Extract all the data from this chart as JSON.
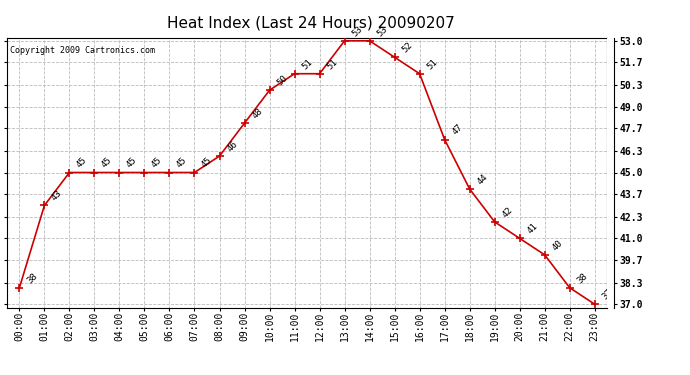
{
  "title": "Heat Index (Last 24 Hours) 20090207",
  "copyright": "Copyright 2009 Cartronics.com",
  "hours": [
    "00:00",
    "01:00",
    "02:00",
    "03:00",
    "04:00",
    "05:00",
    "06:00",
    "07:00",
    "08:00",
    "09:00",
    "10:00",
    "11:00",
    "12:00",
    "13:00",
    "14:00",
    "15:00",
    "16:00",
    "17:00",
    "18:00",
    "19:00",
    "20:00",
    "21:00",
    "22:00",
    "23:00"
  ],
  "values": [
    38,
    43,
    45,
    45,
    45,
    45,
    45,
    45,
    46,
    48,
    50,
    51,
    51,
    53,
    53,
    52,
    51,
    47,
    44,
    42,
    41,
    40,
    38,
    37
  ],
  "ylim_min": 37.0,
  "ylim_max": 53.0,
  "yticks": [
    37.0,
    38.3,
    39.7,
    41.0,
    42.3,
    43.7,
    45.0,
    46.3,
    47.7,
    49.0,
    50.3,
    51.7,
    53.0
  ],
  "line_color": "#cc0000",
  "marker": "+",
  "marker_size": 6,
  "marker_color": "#cc0000",
  "grid_color": "#bbbbbb",
  "grid_style": "--",
  "bg_color": "#ffffff",
  "title_fontsize": 11,
  "label_fontsize": 7,
  "annotation_fontsize": 6.5,
  "copyright_fontsize": 6
}
